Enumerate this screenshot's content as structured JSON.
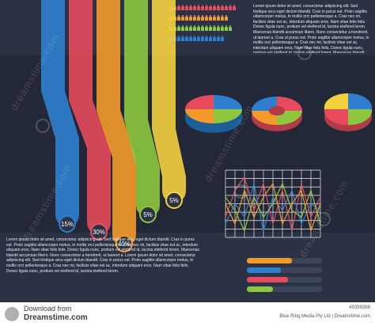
{
  "paragraphs": {
    "top_right": "Lorem ipsum dolor sit amet, consectetur adipiscing elit. Sed tristique arcu eget dictum blandit. Cras in purus est. Proin sagittis ullamcorper metus, in mollis orci pellentesque a. Cras nec mi, facilisis vitae est ac, interdum aliquam eros. Nam vitae felis felis. Donec ligula nunc, pretium vel eleifend id, lacinia eleifend lorem. Maecenas blandit accumsan libero. Nunc consectetur a hendrerit, ut laoreet a. Cras ut purus est. Proin sagittis ullamcorper metus, in mollis orci pellentesque a. Cras nec mi, facilisis vitae est ac, interdum aliquam eros. Nam vitae felis felis. Donec ligula nunc, pretium vel eleifend id, lacinia eleifend lorem. Maecenas blandit accumsan libero. Nunc consectetur a hendrerit, ut laoreet a.",
    "bottom_left": "Lorem ipsum dolor sit amet, consectetur adipiscing elit. Sed tristique arcu eget dictum blandit. Cras in purus est. Proin sagittis ullamcorper metus, in mollis orci pellentesque a. Cras nec mi, facilisis vitae est ac, interdum aliquam eros. Nam vitae felis felis. Donec ligula nunc, pretium vel eleifend id, lacinia eleifend lorem. Maecenas blandit accumsan libero. Nunc consectetur a hendrerit, ut laoreet a. Lorem ipsum dolor sit amet, consectetur adipiscing elit. Sed tristique arcu eget dictum blandit. Cras in purus est. Proin sagittis ullamcorper metus, in mollis orci pellentesque a. Cras nec mi, facilisis vitae est ac, interdum aliquam eros. Nam vitae felis felis. Donec ligula nunc, pretium vel eleifend id, lacinia eleifend lorem."
  },
  "ribbons": [
    {
      "label": "15%",
      "color": "#2f7fcf"
    },
    {
      "label": "30%",
      "color": "#e64a5c"
    },
    {
      "label": "40%",
      "color": "#f39a2b"
    },
    {
      "label": "5%",
      "color": "#8dc63f"
    },
    {
      "label": "5%",
      "color": "#f4d03f"
    }
  ],
  "people_rows": [
    {
      "color": "#e64a5c",
      "count": 17
    },
    {
      "color": "#f39a2b",
      "count": 15
    },
    {
      "color": "#8dc63f",
      "count": 16
    },
    {
      "color": "#2f7fcf",
      "count": 14
    }
  ],
  "watermark": "dreamstime.com",
  "progress_bars": [
    {
      "color": "#f39a2b",
      "value": 0.6
    },
    {
      "color": "#2f7fcf",
      "value": 0.45
    },
    {
      "color": "#e64a5c",
      "value": 0.55
    },
    {
      "color": "#8dc63f",
      "value": 0.35
    }
  ],
  "footer": {
    "download_label": "Download from",
    "site": "Dreamstime.com",
    "id": "49399388",
    "credit": "Blue Ring Media Pty Ltd | Dreamstime.com"
  }
}
